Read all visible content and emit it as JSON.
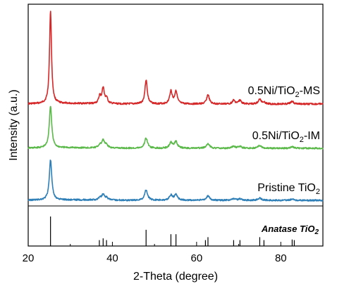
{
  "chart_data": {
    "type": "line",
    "xlabel": "2-Theta (degree)",
    "ylabel": "Intensity (a.u.)",
    "xlim": [
      20,
      90
    ],
    "xticks": [
      20,
      40,
      60,
      80
    ],
    "xtick_labels": [
      "20",
      "40",
      "60",
      "80"
    ],
    "series": [
      {
        "name": "0.5Ni/TiO2-MS",
        "label_main": "0.5Ni/TiO",
        "label_sub": "2",
        "label_tail": "-MS",
        "color": "#d62728",
        "peaks": [
          {
            "x": 25.3,
            "y": 100
          },
          {
            "x": 37.0,
            "y": 8
          },
          {
            "x": 37.8,
            "y": 17
          },
          {
            "x": 38.6,
            "y": 6
          },
          {
            "x": 48.0,
            "y": 26
          },
          {
            "x": 53.9,
            "y": 14
          },
          {
            "x": 55.1,
            "y": 14
          },
          {
            "x": 62.7,
            "y": 10
          },
          {
            "x": 68.8,
            "y": 4
          },
          {
            "x": 70.3,
            "y": 4
          },
          {
            "x": 75.0,
            "y": 5
          },
          {
            "x": 76.0,
            "y": 2
          },
          {
            "x": 82.7,
            "y": 3
          }
        ]
      },
      {
        "name": "0.5Ni/TiO2-IM",
        "label_main": "0.5Ni/TiO",
        "label_sub": "2",
        "label_tail": "-IM",
        "color": "#5bb94a",
        "peaks": [
          {
            "x": 25.3,
            "y": 45
          },
          {
            "x": 37.0,
            "y": 3
          },
          {
            "x": 37.8,
            "y": 8
          },
          {
            "x": 38.6,
            "y": 3
          },
          {
            "x": 48.0,
            "y": 11
          },
          {
            "x": 53.9,
            "y": 6
          },
          {
            "x": 55.1,
            "y": 7
          },
          {
            "x": 62.7,
            "y": 5
          },
          {
            "x": 68.8,
            "y": 2
          },
          {
            "x": 70.3,
            "y": 2
          },
          {
            "x": 75.0,
            "y": 3
          },
          {
            "x": 82.7,
            "y": 1.5
          }
        ]
      },
      {
        "name": "Pristine TiO2",
        "label_main": "Pristine TiO",
        "label_sub": "2",
        "label_tail": "",
        "color": "#2e7fb8",
        "peaks": [
          {
            "x": 25.3,
            "y": 57
          },
          {
            "x": 37.0,
            "y": 3
          },
          {
            "x": 37.8,
            "y": 8
          },
          {
            "x": 38.6,
            "y": 3
          },
          {
            "x": 48.0,
            "y": 15
          },
          {
            "x": 53.9,
            "y": 7
          },
          {
            "x": 55.1,
            "y": 8
          },
          {
            "x": 62.7,
            "y": 6
          },
          {
            "x": 68.8,
            "y": 2
          },
          {
            "x": 70.3,
            "y": 2
          },
          {
            "x": 75.0,
            "y": 3
          },
          {
            "x": 82.7,
            "y": 1.5
          }
        ]
      }
    ],
    "reference": {
      "name": "Anatase TiO2",
      "label_main": "Anatase TiO",
      "label_sub": "2",
      "color": "#000000",
      "lines": [
        {
          "x": 25.3,
          "y": 100
        },
        {
          "x": 36.9,
          "y": 20
        },
        {
          "x": 37.8,
          "y": 26
        },
        {
          "x": 38.6,
          "y": 20
        },
        {
          "x": 48.0,
          "y": 55
        },
        {
          "x": 53.9,
          "y": 40
        },
        {
          "x": 55.1,
          "y": 40
        },
        {
          "x": 62.1,
          "y": 20
        },
        {
          "x": 62.7,
          "y": 30
        },
        {
          "x": 68.8,
          "y": 20
        },
        {
          "x": 70.3,
          "y": 20
        },
        {
          "x": 75.0,
          "y": 30
        },
        {
          "x": 76.0,
          "y": 20
        },
        {
          "x": 82.7,
          "y": 22
        },
        {
          "x": 83.2,
          "y": 20
        }
      ]
    }
  }
}
